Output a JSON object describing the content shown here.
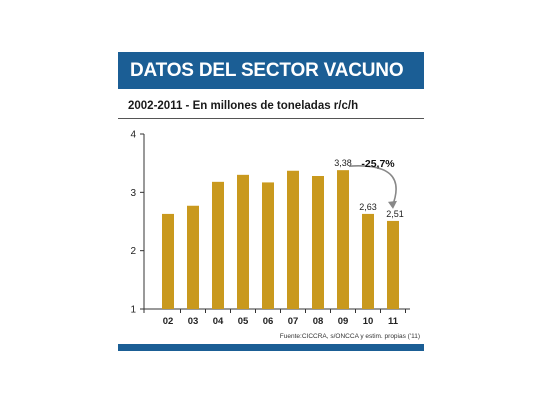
{
  "header": {
    "title": "DATOS DEL SECTOR VACUNO"
  },
  "subtitle": "2002-2011 - En millones de toneladas r/c/h",
  "source": "Fuente:CICCRA, s/ONCCA y estim. propias ('11)",
  "colors": {
    "header": "#1b5e95",
    "bar": "#c9991e",
    "axis": "#333333"
  },
  "chart_data": {
    "type": "bar",
    "title": "DATOS DEL SECTOR VACUNO",
    "subtitle": "2002-2011 - En millones de toneladas r/c/h",
    "categories": [
      "02",
      "03",
      "04",
      "05",
      "06",
      "07",
      "08",
      "09",
      "10",
      "11"
    ],
    "values": [
      2.63,
      2.77,
      3.18,
      3.3,
      3.17,
      3.37,
      3.28,
      3.38,
      2.63,
      2.51
    ],
    "data_labels": [
      {
        "category": "09",
        "text": "3,38"
      },
      {
        "category": "10",
        "text": "2,63"
      },
      {
        "category": "11",
        "text": "2,51"
      }
    ],
    "annotation": {
      "text": "-25,7%",
      "from": "09",
      "to": "11"
    },
    "ylim": [
      1,
      4
    ],
    "yticks": [
      1,
      2,
      3,
      4
    ],
    "xlabel": "",
    "ylabel": "",
    "grid": false,
    "legend": "none"
  }
}
